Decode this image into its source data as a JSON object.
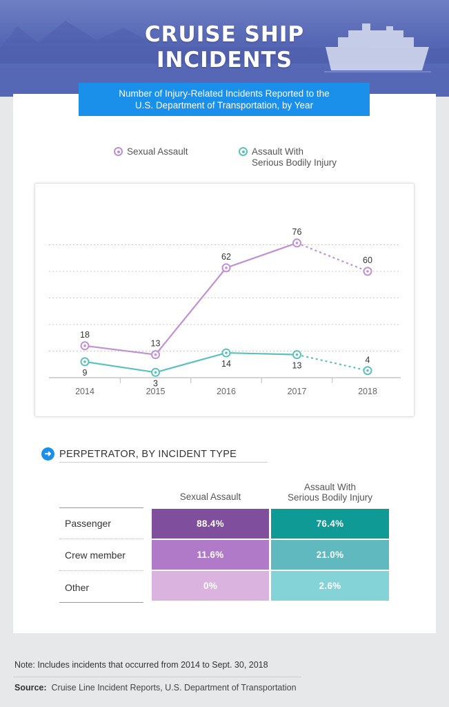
{
  "header": {
    "title_line1": "CRUISE SHIP",
    "title_line2": "INCIDENTS",
    "subtitle_line1": "Number of Injury-Related Incidents Reported to the",
    "subtitle_line2": "U.S. Department of Transportation, by Year"
  },
  "legend": {
    "series1": "Sexual Assault",
    "series2_line1": "Assault With",
    "series2_line2": "Serious Bodily Injury"
  },
  "chart_data": {
    "type": "line",
    "title": "Number of Injury-Related Incidents Reported to the U.S. Department of Transportation, by Year",
    "x": [
      "2014",
      "2015",
      "2016",
      "2017",
      "2018"
    ],
    "ylim": [
      0,
      90
    ],
    "grid": true,
    "legend_position": "top",
    "series": [
      {
        "name": "Sexual Assault",
        "values": [
          18,
          13,
          62,
          76,
          60
        ],
        "color": "#c18fd6",
        "dashed_last_segment": true
      },
      {
        "name": "Assault With Serious Bodily Injury",
        "values": [
          9,
          3,
          14,
          13,
          4
        ],
        "color": "#5cc1bb",
        "dashed_last_segment": true
      }
    ]
  },
  "table": {
    "heading": "PERPETRATOR, BY INCIDENT TYPE",
    "col1": "Sexual Assault",
    "col2_line1": "Assault With",
    "col2_line2": "Serious Bodily Injury",
    "rows": [
      {
        "label": "Passenger",
        "sexual_assault": "88.4%",
        "assault_injury": "76.4%"
      },
      {
        "label": "Crew member",
        "sexual_assault": "11.6%",
        "assault_injury": "21.0%"
      },
      {
        "label": "Other",
        "sexual_assault": "0%",
        "assault_injury": "2.6%"
      }
    ],
    "colors": {
      "sa": [
        "#7f4e9c",
        "#b07ac8",
        "#dab3df"
      ],
      "as": [
        "#0f9a96",
        "#5fb9bf",
        "#84d4d7"
      ]
    }
  },
  "footer": {
    "note": "Note: Includes incidents that occurred from 2014 to Sept. 30, 2018",
    "source_label": "Source:",
    "source_text": "Cruise Line Incident Reports, U.S. Department of Transportation"
  }
}
